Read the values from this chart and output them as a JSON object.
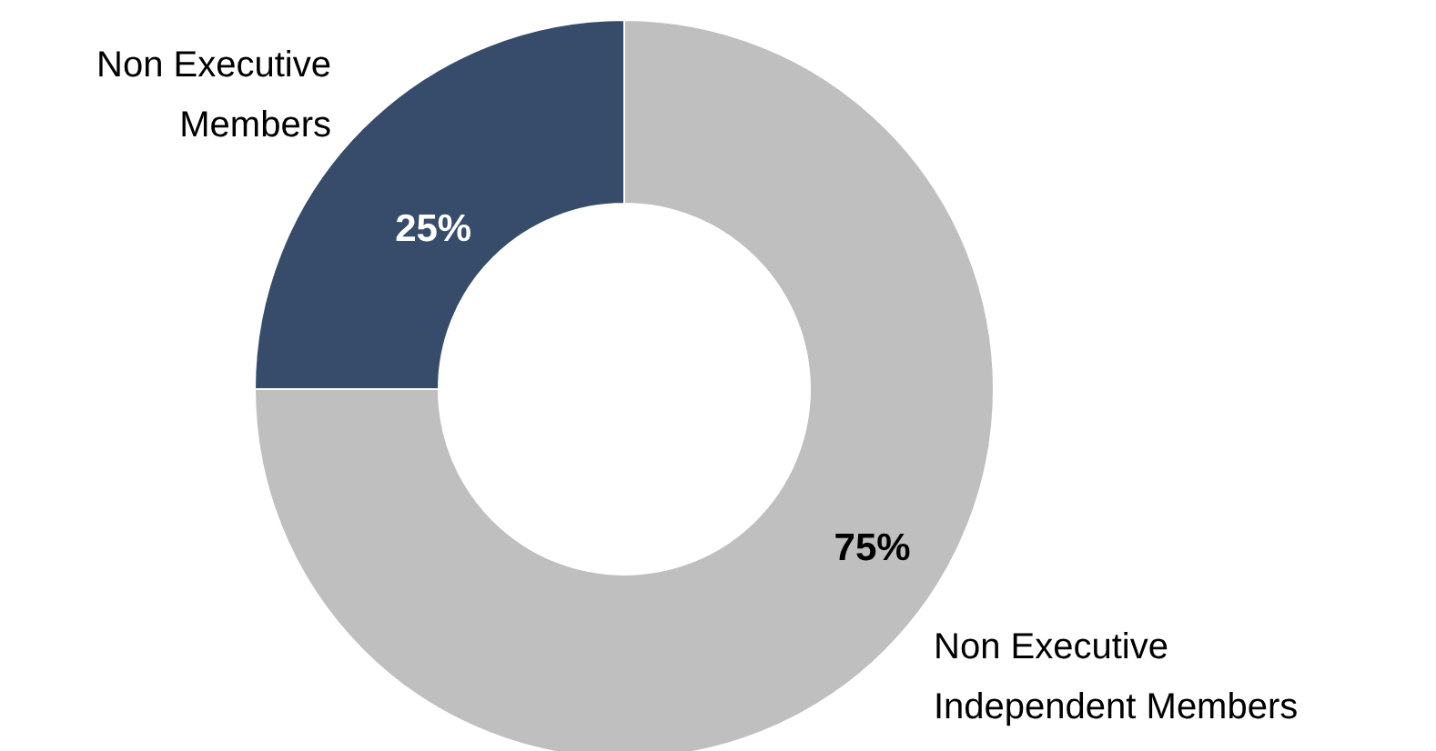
{
  "chart_data": {
    "type": "donut",
    "categories": [
      "Non Executive Members",
      "Non Executive Independent Members"
    ],
    "values": [
      25,
      75
    ],
    "colors": [
      "#374c6b",
      "#bfbfbf"
    ],
    "value_labels": [
      "25%",
      "75%"
    ]
  }
}
